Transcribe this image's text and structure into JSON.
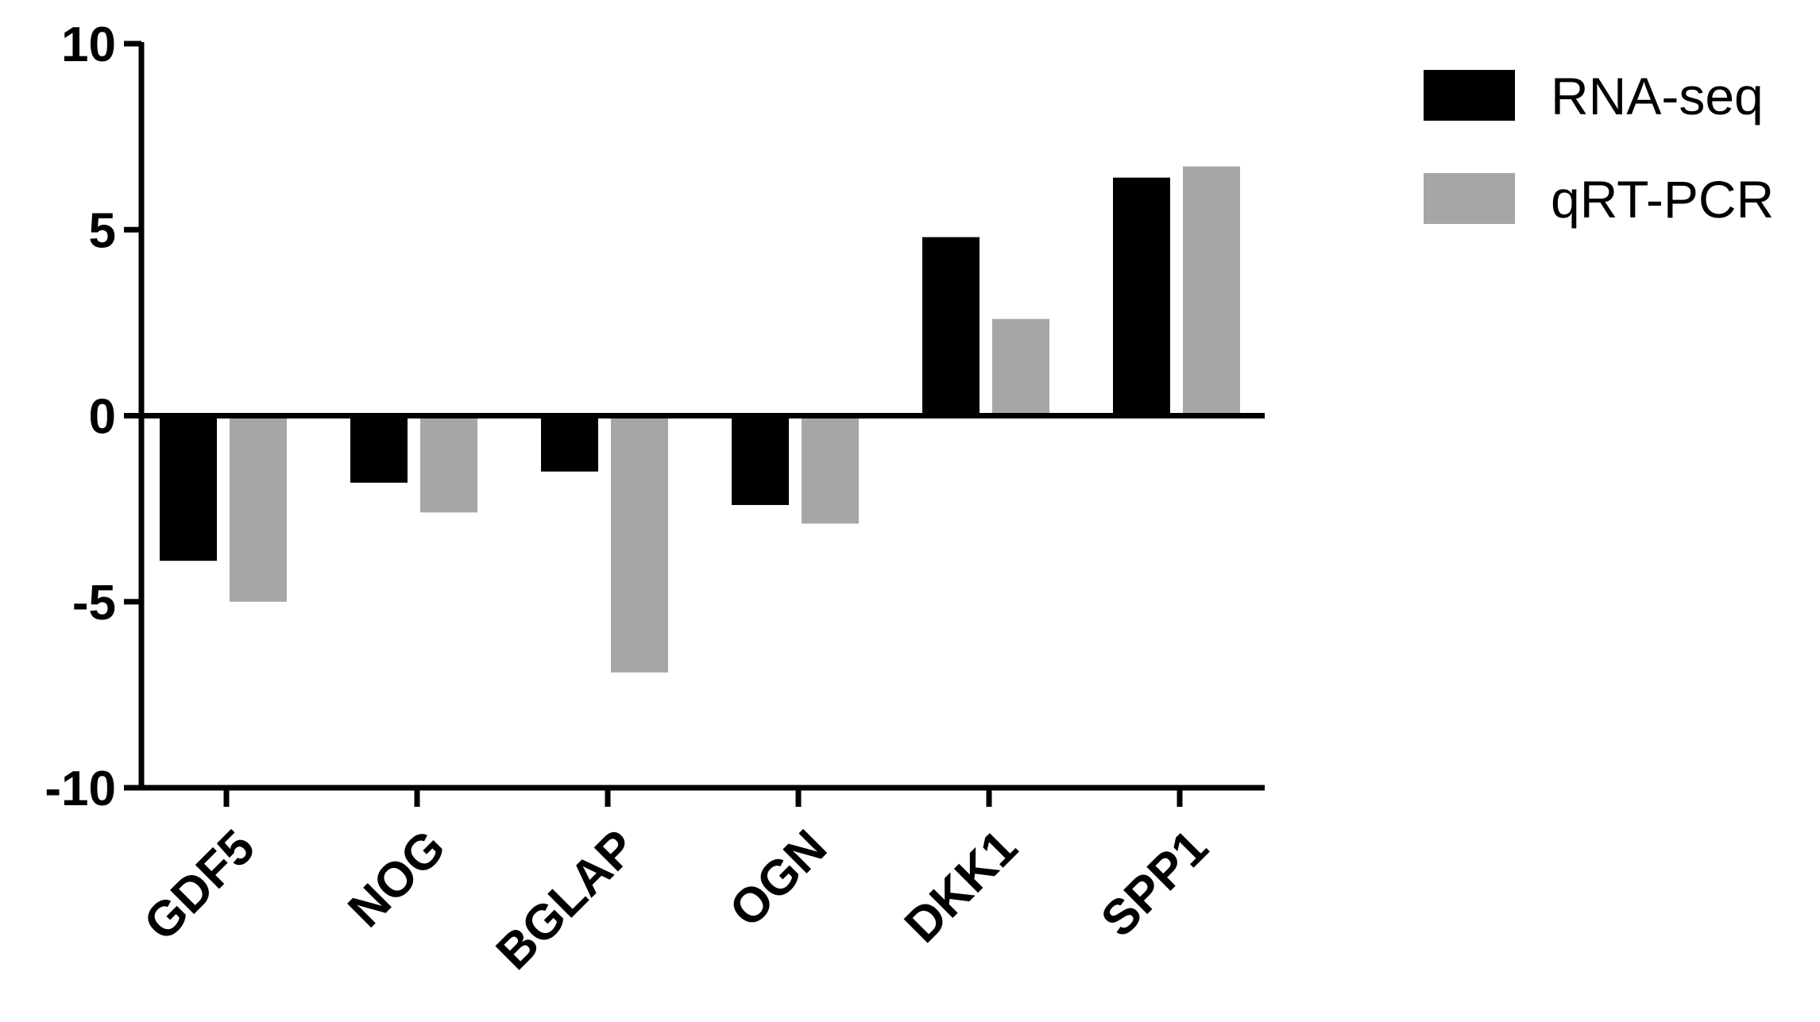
{
  "chart_data": {
    "type": "bar",
    "title": "",
    "xlabel": "",
    "ylabel": "",
    "categories": [
      "GDF5",
      "NOG",
      "BGLAP",
      "OGN",
      "DKK1",
      "SPP1"
    ],
    "series": [
      {
        "name": "RNA-seq",
        "values": [
          -3.9,
          -1.8,
          -1.5,
          -2.4,
          4.8,
          6.4
        ],
        "color": "#000000"
      },
      {
        "name": "qRT-PCR",
        "values": [
          -5.0,
          -2.6,
          -6.9,
          -2.9,
          2.6,
          6.7
        ],
        "color": "#a6a6a8"
      }
    ],
    "ylim": [
      -10,
      10
    ],
    "yticks": [
      10,
      5,
      0,
      -5,
      -10
    ],
    "ytick_labels": [
      "10",
      "5",
      "0",
      "-5",
      "-10"
    ],
    "grid": false,
    "legend_position": "top-right"
  }
}
